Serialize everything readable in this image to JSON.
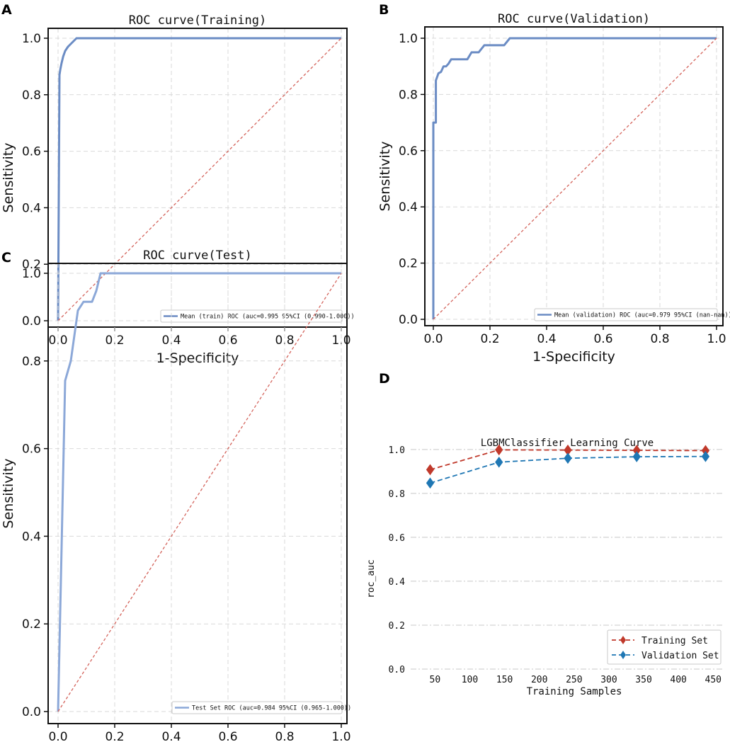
{
  "chart_data": [
    {
      "panel": "A",
      "type": "line",
      "title": "ROC curve(Training)",
      "xlabel": "1-Specificity",
      "ylabel": "Sensitivity",
      "xlim": [
        0,
        1
      ],
      "ylim": [
        0,
        1
      ],
      "xticks": [
        "0.0",
        "0.2",
        "0.4",
        "0.6",
        "0.8",
        "1.0"
      ],
      "yticks": [
        "0.0",
        "0.2",
        "0.4",
        "0.6",
        "0.8",
        "1.0"
      ],
      "grid": true,
      "legend_position": "lower-right",
      "series": [
        {
          "name": "Mean (train) ROC (auc=0.995 95%CI (0.990-1.000))",
          "color": "#6b8cc4",
          "x": [
            0,
            0.005,
            0.008,
            0.012,
            0.018,
            0.025,
            0.035,
            0.05,
            0.065,
            0.1,
            1
          ],
          "y": [
            0,
            0.87,
            0.89,
            0.91,
            0.935,
            0.955,
            0.97,
            0.985,
            1.0,
            1.0,
            1.0
          ]
        },
        {
          "name": "chance",
          "color": "#d4645c",
          "x": [
            0,
            1
          ],
          "y": [
            0,
            1
          ]
        }
      ]
    },
    {
      "panel": "B",
      "type": "line",
      "title": "ROC curve(Validation)",
      "xlabel": "1-Specificity",
      "ylabel": "Sensitivity",
      "xlim": [
        0,
        1
      ],
      "ylim": [
        0,
        1
      ],
      "xticks": [
        "0.0",
        "0.2",
        "0.4",
        "0.6",
        "0.8",
        "1.0"
      ],
      "yticks": [
        "0.0",
        "0.2",
        "0.4",
        "0.6",
        "0.8",
        "1.0"
      ],
      "grid": true,
      "legend_position": "lower-right",
      "series": [
        {
          "name": "Mean (validation) ROC (auc=0.979 95%CI (nan-nan))",
          "color": "#6b8cc4",
          "x": [
            0,
            0.0,
            0.009,
            0.009,
            0.018,
            0.018,
            0.027,
            0.036,
            0.045,
            0.054,
            0.063,
            0.072,
            0.12,
            0.135,
            0.16,
            0.18,
            0.21,
            0.25,
            0.27,
            1
          ],
          "y": [
            0,
            0.7,
            0.7,
            0.85,
            0.875,
            0.875,
            0.88,
            0.9,
            0.9,
            0.91,
            0.925,
            0.925,
            0.925,
            0.95,
            0.95,
            0.975,
            0.975,
            0.975,
            1.0,
            1.0
          ]
        },
        {
          "name": "chance",
          "color": "#d4645c",
          "x": [
            0,
            1
          ],
          "y": [
            0,
            1
          ]
        }
      ]
    },
    {
      "panel": "C",
      "type": "line",
      "title": "ROC curve(Test)",
      "xlabel": "1-Specificity",
      "ylabel": "Sensitivity",
      "xlim": [
        0,
        1
      ],
      "ylim": [
        0,
        1
      ],
      "xticks": [
        "0.0",
        "0.2",
        "0.4",
        "0.6",
        "0.8",
        "1.0"
      ],
      "yticks": [
        "0.0",
        "0.2",
        "0.4",
        "0.6",
        "0.8",
        "1.0"
      ],
      "grid": true,
      "legend_position": "lower-right",
      "series": [
        {
          "name": "Test Set ROC (auc=0.984 95%CI (0.965-1.000))",
          "color": "#8ca8d8",
          "x": [
            0,
            0.01,
            0.025,
            0.045,
            0.07,
            0.09,
            0.12,
            0.135,
            0.15,
            1
          ],
          "y": [
            0,
            0.3,
            0.755,
            0.8,
            0.915,
            0.935,
            0.935,
            0.96,
            1.0,
            1.0
          ]
        },
        {
          "name": "chance",
          "color": "#d4645c",
          "x": [
            0,
            1
          ],
          "y": [
            0,
            1
          ]
        }
      ]
    },
    {
      "panel": "D",
      "type": "line",
      "title": "LGBMClassifier Learning Curve",
      "xlabel": "Training Samples",
      "ylabel": "roc_auc",
      "xlim": [
        15,
        465
      ],
      "ylim": [
        0,
        1.08
      ],
      "xticks": [
        "50",
        "100",
        "150",
        "200",
        "250",
        "300",
        "350",
        "400",
        "450"
      ],
      "yticks": [
        "0.0",
        "0.2",
        "0.4",
        "0.6",
        "0.8",
        "1.0"
      ],
      "grid": true,
      "legend_position": "lower-right",
      "categories": [
        43,
        142,
        241,
        340,
        439
      ],
      "series": [
        {
          "name": "Training Set",
          "color": "#c0392b",
          "x": [
            43,
            142,
            241,
            340,
            439
          ],
          "values": [
            0.908,
            0.998,
            0.997,
            0.996,
            0.995
          ]
        },
        {
          "name": "Validation Set",
          "color": "#1f77b4",
          "x": [
            43,
            142,
            241,
            340,
            439
          ],
          "values": [
            0.847,
            0.942,
            0.96,
            0.967,
            0.968
          ]
        }
      ]
    }
  ]
}
